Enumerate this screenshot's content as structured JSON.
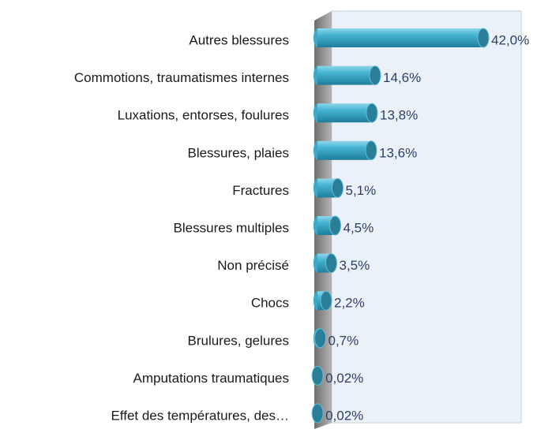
{
  "chart_data": {
    "type": "bar",
    "orientation": "horizontal",
    "categories": [
      "Autres blessures",
      "Commotions, traumatismes internes",
      "Luxations, entorses, foulures",
      "Blessures, plaies",
      "Fractures",
      "Blessures multiples",
      "Non précisé",
      "Chocs",
      "Brulures, gelures",
      "Amputations traumatiques",
      "Effet des températures, des…"
    ],
    "values": [
      42.0,
      14.6,
      13.8,
      13.6,
      5.1,
      4.5,
      3.5,
      2.2,
      0.7,
      0.02,
      0.02
    ],
    "value_labels": [
      "42,0%",
      "14,6%",
      "13,8%",
      "13,6%",
      "5,1%",
      "4,5%",
      "3,5%",
      "2,2%",
      "0,7%",
      "0,02%",
      "0,02%"
    ],
    "color": "#3aa8c8",
    "xlim": [
      0,
      50
    ]
  }
}
